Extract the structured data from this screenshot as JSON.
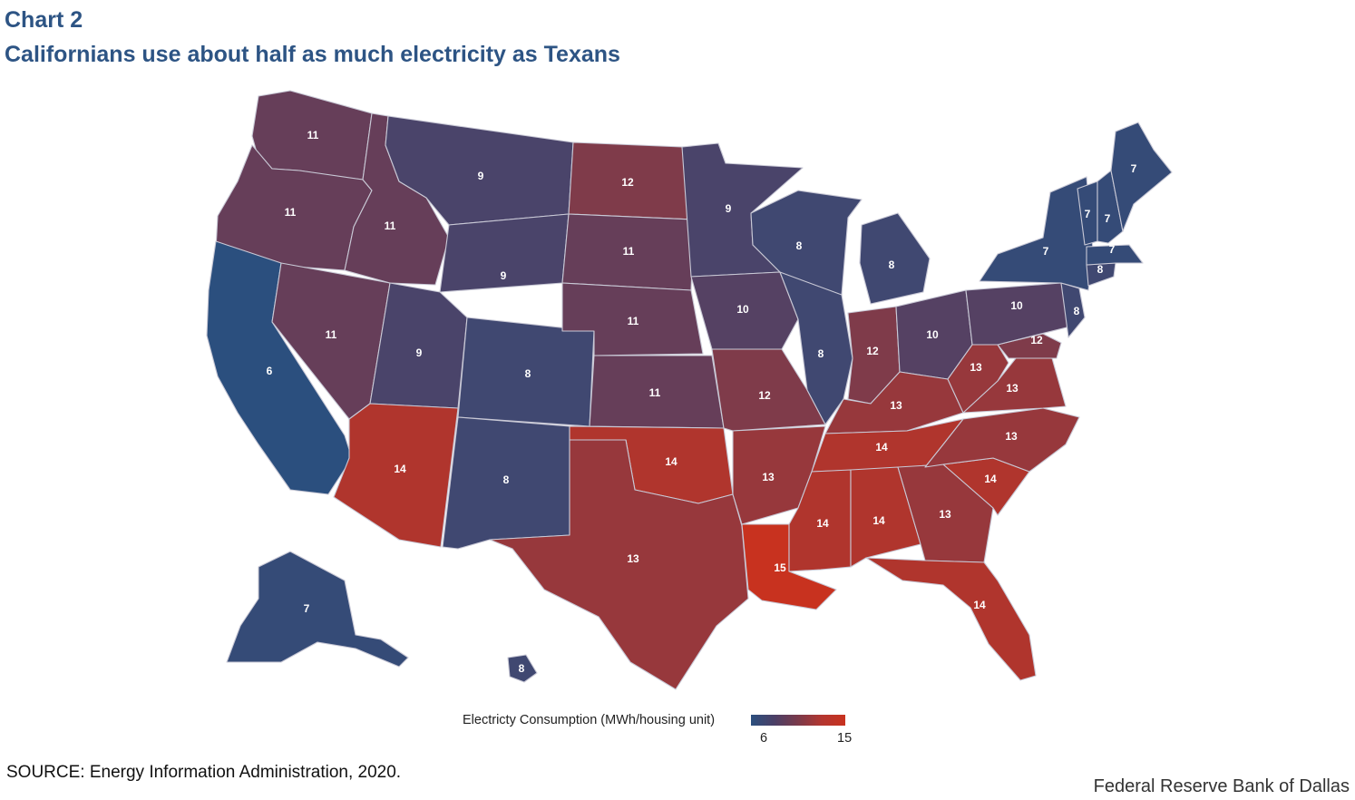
{
  "chart_label": "Chart 2",
  "title": "Californians use about half as much electricity as Texans",
  "legend": {
    "title": "Electricty Consumption (MWh/housing unit)",
    "min": "6",
    "max": "15"
  },
  "source": "SOURCE: Energy Information Administration, 2020.",
  "credit": "Federal Reserve Bank of Dallas",
  "colors": {
    "low": "#2b4f7e",
    "mid": "#5a3f60",
    "high": "#c8321f",
    "border": "#c9c9d6",
    "title": "#2d5484"
  },
  "chart_data": {
    "type": "choropleth",
    "title": "Californians use about half as much electricity as Texans",
    "legend_title": "Electricty Consumption (MWh/housing unit)",
    "scale_range": [
      6,
      15
    ],
    "states": [
      {
        "state": "Washington",
        "value": 11
      },
      {
        "state": "Oregon",
        "value": 11
      },
      {
        "state": "California",
        "value": 6
      },
      {
        "state": "Nevada",
        "value": 11
      },
      {
        "state": "Idaho",
        "value": 11
      },
      {
        "state": "Montana",
        "value": 9
      },
      {
        "state": "Wyoming",
        "value": 9
      },
      {
        "state": "Utah",
        "value": 9
      },
      {
        "state": "Arizona",
        "value": 14
      },
      {
        "state": "Colorado",
        "value": 8
      },
      {
        "state": "New Mexico",
        "value": 8
      },
      {
        "state": "North Dakota",
        "value": 12
      },
      {
        "state": "South Dakota",
        "value": 11
      },
      {
        "state": "Nebraska",
        "value": 11
      },
      {
        "state": "Kansas",
        "value": 11
      },
      {
        "state": "Oklahoma",
        "value": 14
      },
      {
        "state": "Texas",
        "value": 13
      },
      {
        "state": "Minnesota",
        "value": 9
      },
      {
        "state": "Iowa",
        "value": 10
      },
      {
        "state": "Missouri",
        "value": 12
      },
      {
        "state": "Arkansas",
        "value": 13
      },
      {
        "state": "Louisiana",
        "value": 15
      },
      {
        "state": "Wisconsin",
        "value": 8
      },
      {
        "state": "Illinois",
        "value": 8
      },
      {
        "state": "Michigan",
        "value": 8
      },
      {
        "state": "Indiana",
        "value": 12
      },
      {
        "state": "Ohio",
        "value": 10
      },
      {
        "state": "Kentucky",
        "value": 13
      },
      {
        "state": "Tennessee",
        "value": 14
      },
      {
        "state": "Mississippi",
        "value": 14
      },
      {
        "state": "Alabama",
        "value": 14
      },
      {
        "state": "Georgia",
        "value": 13
      },
      {
        "state": "Florida",
        "value": 14
      },
      {
        "state": "South Carolina",
        "value": 14
      },
      {
        "state": "North Carolina",
        "value": 13
      },
      {
        "state": "Virginia",
        "value": 13
      },
      {
        "state": "West Virginia",
        "value": 13
      },
      {
        "state": "Maryland",
        "value": 12
      },
      {
        "state": "Pennsylvania",
        "value": 10
      },
      {
        "state": "New Jersey",
        "value": 8
      },
      {
        "state": "New York",
        "value": 7
      },
      {
        "state": "Connecticut",
        "value": 8
      },
      {
        "state": "Massachusetts",
        "value": 7
      },
      {
        "state": "Vermont",
        "value": 7
      },
      {
        "state": "New Hampshire",
        "value": 7
      },
      {
        "state": "Maine",
        "value": 7
      },
      {
        "state": "Alaska",
        "value": 7
      },
      {
        "state": "Hawaii",
        "value": 8
      }
    ]
  }
}
